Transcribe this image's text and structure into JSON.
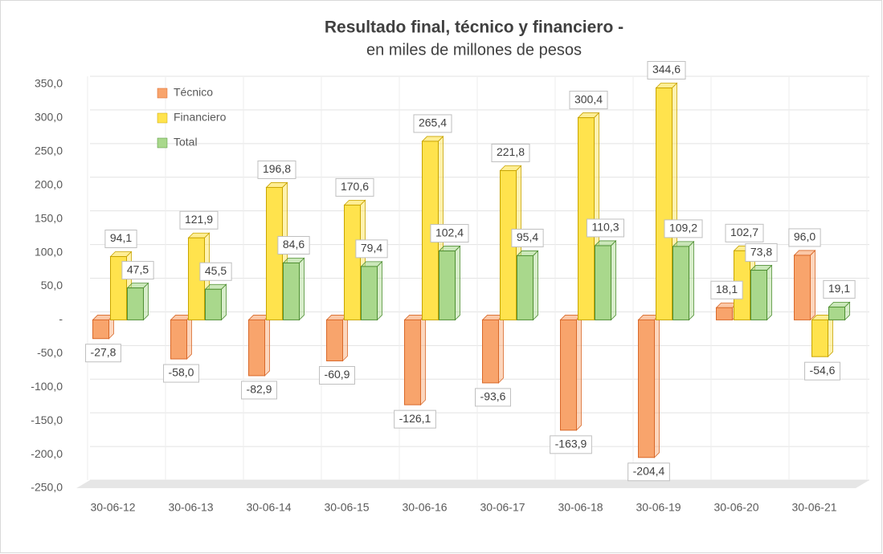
{
  "chart_data": {
    "type": "bar3d",
    "title": "Resultado final, técnico y financiero -",
    "subtitle": "en miles de millones de pesos",
    "categories": [
      "30-06-12",
      "30-06-13",
      "30-06-14",
      "30-06-15",
      "30-06-16",
      "30-06-17",
      "30-06-18",
      "30-06-19",
      "30-06-20",
      "30-06-21"
    ],
    "series": [
      {
        "name": "Técnico",
        "color": "#f8a46c",
        "edge": "#d9692a",
        "values": [
          -27.8,
          -58.0,
          -82.9,
          -60.9,
          -126.1,
          -93.6,
          -163.9,
          -204.4,
          18.1,
          96.0
        ],
        "value_labels": [
          "-27,8",
          "-58,0",
          "-82,9",
          "-60,9",
          "-126,1",
          "-93,6",
          "-163,9",
          "-204,4",
          "18,1",
          "96,0"
        ]
      },
      {
        "name": "Financiero",
        "color": "#ffe34d",
        "edge": "#c8a400",
        "values": [
          94.1,
          121.9,
          196.8,
          170.6,
          265.4,
          221.8,
          300.4,
          344.6,
          102.7,
          -54.6
        ],
        "value_labels": [
          "94,1",
          "121,9",
          "196,8",
          "170,6",
          "265,4",
          "221,8",
          "300,4",
          "344,6",
          "102,7",
          "-54,6"
        ]
      },
      {
        "name": "Total",
        "color": "#a9d88c",
        "edge": "#4f8f33",
        "values": [
          47.5,
          45.5,
          84.6,
          79.4,
          102.4,
          95.4,
          110.3,
          109.2,
          73.8,
          19.1
        ],
        "value_labels": [
          "47,5",
          "45,5",
          "84,6",
          "79,4",
          "102,4",
          "95,4",
          "110,3",
          "109,2",
          "73,8",
          "19,1"
        ]
      }
    ],
    "ylim": [
      -250,
      350
    ],
    "yticks": [
      {
        "value": -250,
        "label": "-250,0"
      },
      {
        "value": -200,
        "label": "-200,0"
      },
      {
        "value": -150,
        "label": "-150,0"
      },
      {
        "value": -100,
        "label": "-100,0"
      },
      {
        "value": -50,
        "label": "-50,0"
      },
      {
        "value": 0,
        "label": "-"
      },
      {
        "value": 50,
        "label": "50,0"
      },
      {
        "value": 100,
        "label": "100,0"
      },
      {
        "value": 150,
        "label": "150,0"
      },
      {
        "value": 200,
        "label": "200,0"
      },
      {
        "value": 250,
        "label": "250,0"
      },
      {
        "value": 300,
        "label": "300,0"
      },
      {
        "value": 350,
        "label": "350,0"
      }
    ],
    "grid": true,
    "legend": "top-left"
  }
}
